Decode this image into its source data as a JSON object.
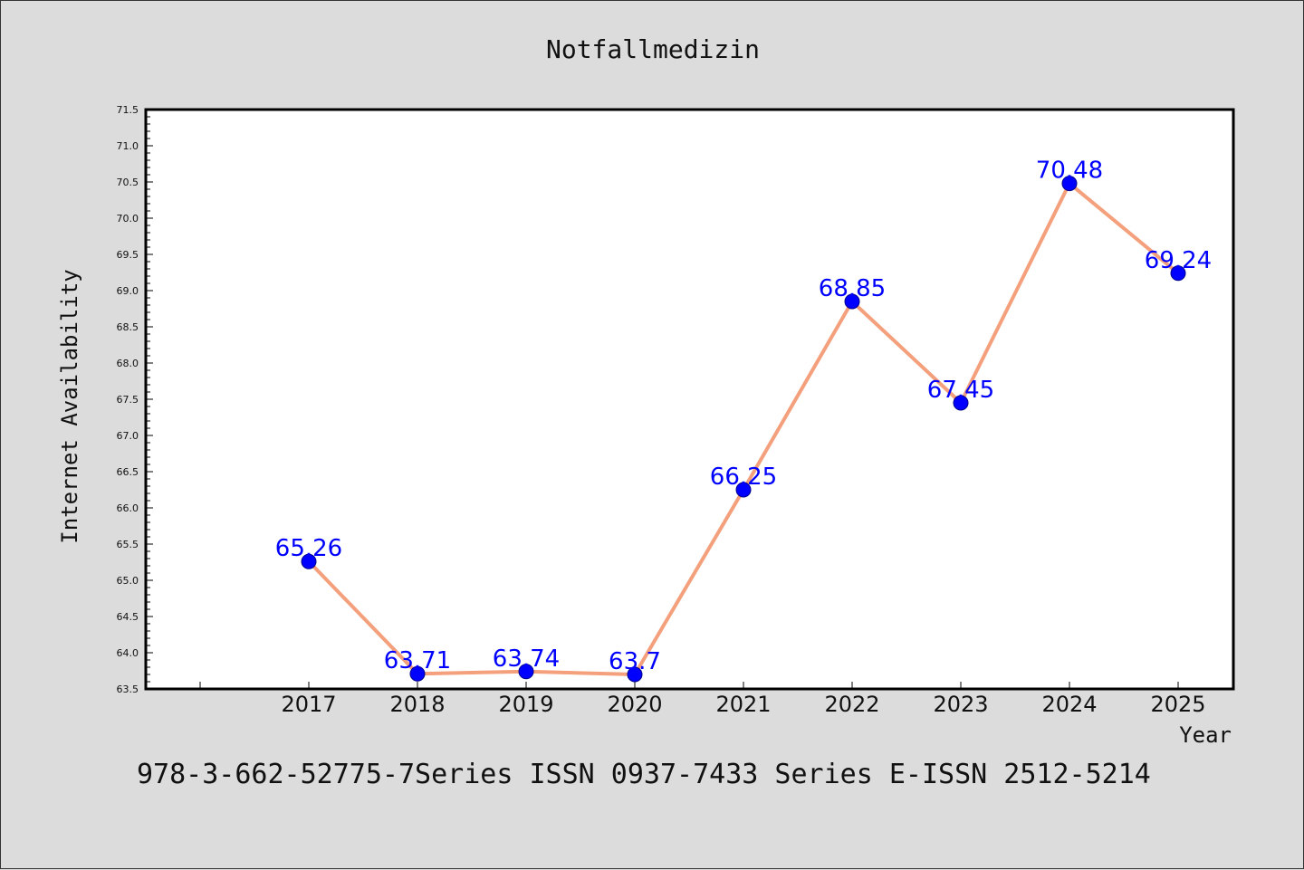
{
  "chart_data": {
    "type": "line",
    "title": "Notfallmedizin",
    "xlabel": "Year",
    "ylabel": "Internet Availability",
    "x": [
      "2017",
      "2018",
      "2019",
      "2020",
      "2021",
      "2022",
      "2023",
      "2024",
      "2025"
    ],
    "series": [
      {
        "values": [
          65.26,
          63.71,
          63.74,
          63.7,
          66.25,
          68.85,
          67.45,
          70.48,
          69.24
        ],
        "line_color": "#f4a07c",
        "marker_color": "#0000ff"
      }
    ],
    "data_labels": [
      "65.26",
      "63.71",
      "63.74",
      "63.7",
      "66.25",
      "68.85",
      "67.45",
      "70.48",
      "69.24"
    ],
    "ylim": [
      63.5,
      71.5
    ],
    "yticks": [
      "63.5",
      "64.0",
      "64.5",
      "65.0",
      "65.5",
      "66.0",
      "66.5",
      "67.0",
      "67.5",
      "68.0",
      "68.5",
      "69.0",
      "69.5",
      "70.0",
      "70.5",
      "71.0",
      "71.5"
    ],
    "grid": false,
    "label_color": "#0000ff",
    "background": "#dcdcdc",
    "plot_background": "#ffffff"
  },
  "footer": "978-3-662-52775-7Series ISSN 0937-7433 Series E-ISSN 2512-5214"
}
